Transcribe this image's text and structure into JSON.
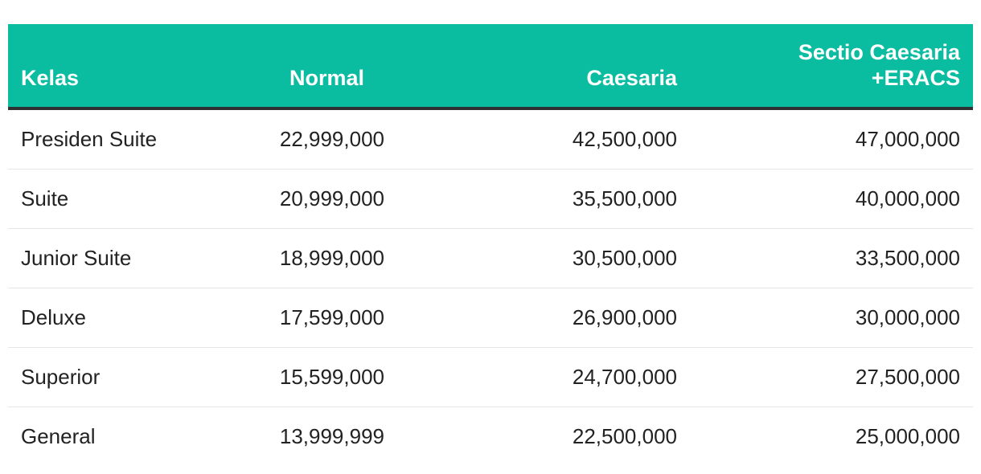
{
  "headers": {
    "kelas": "Kelas",
    "normal": "Normal",
    "caesaria": "Caesaria",
    "sectio_line1": "Sectio Caesaria",
    "sectio_line2": "+ERACS"
  },
  "rows": [
    {
      "kelas": "Presiden Suite",
      "normal": "22,999,000",
      "caesaria": "42,500,000",
      "sectio": "47,000,000"
    },
    {
      "kelas": "Suite",
      "normal": "20,999,000",
      "caesaria": "35,500,000",
      "sectio": "40,000,000"
    },
    {
      "kelas": "Junior Suite",
      "normal": "18,999,000",
      "caesaria": "30,500,000",
      "sectio": "33,500,000"
    },
    {
      "kelas": "Deluxe",
      "normal": "17,599,000",
      "caesaria": "26,900,000",
      "sectio": "30,000,000"
    },
    {
      "kelas": "Superior",
      "normal": "15,599,000",
      "caesaria": "24,700,000",
      "sectio": "27,500,000"
    },
    {
      "kelas": "General",
      "normal": "13,999,999",
      "caesaria": "22,500,000",
      "sectio": "25,000,000"
    }
  ],
  "colors": {
    "header_bg": "#0bbda0",
    "header_text": "#ffffff",
    "header_border": "#2f3232",
    "row_divider": "#e6e6e6",
    "body_text": "#222222"
  }
}
